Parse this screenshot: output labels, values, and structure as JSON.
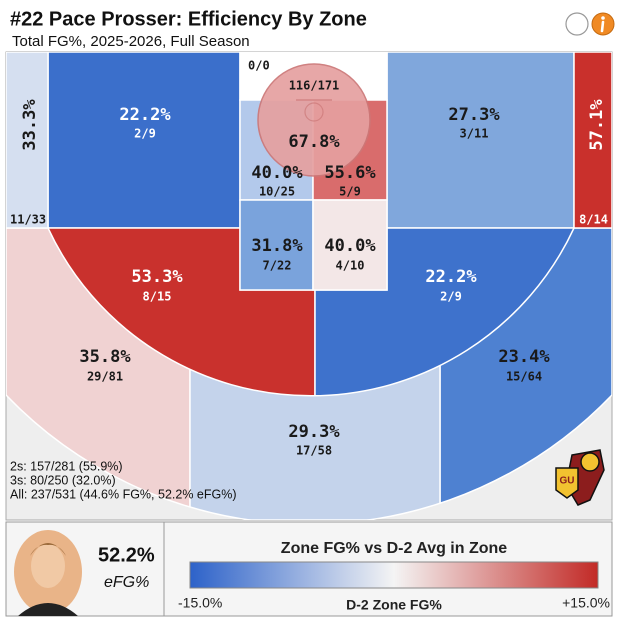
{
  "header": {
    "title": "#22 Pace Prosser: Efficiency By Zone",
    "subtitle": "Total FG%, 2025-2026, Full Season"
  },
  "zones": [
    {
      "pct": "33.3%",
      "made": "11/33",
      "color": "#d5dff0",
      "label_color": "#1a1a1a"
    },
    {
      "pct": "57.1%",
      "made": "8/14",
      "color": "#c9302c",
      "label_color": "#ffffff"
    },
    {
      "pct": "22.2%",
      "made": "2/9",
      "color": "#3b6fcb",
      "label_color": "#ffffff"
    },
    {
      "pct": "27.3%",
      "made": "3/11",
      "color": "#80a7dc",
      "label_color": "#1a1a1a"
    },
    {
      "pct": "53.3%",
      "made": "8/15",
      "color": "#c9312d",
      "label_color": "#ffffff"
    },
    {
      "pct": "22.2%",
      "made": "2/9",
      "color": "#3e72cc",
      "label_color": "#ffffff"
    },
    {
      "pct": "35.8%",
      "made": "29/81",
      "color": "#f0d2d2",
      "label_color": "#1a1a1a"
    },
    {
      "pct": "23.4%",
      "made": "15/64",
      "color": "#4e81d1",
      "label_color": "#1a1a1a"
    },
    {
      "pct": "29.3%",
      "made": "17/58",
      "color": "#c4d3eb",
      "label_color": "#1a1a1a"
    },
    {
      "made": "0/0",
      "color": "#ffffff",
      "label_color": "#1a1a1a"
    },
    {
      "pct": "67.8%",
      "made": "116/171",
      "color": "#e5a0a0",
      "label_color": "#1a1a1a"
    },
    {
      "pct": "40.0%",
      "made": "10/25",
      "color": "#b3c9eb",
      "label_color": "#1a1a1a"
    },
    {
      "pct": "55.6%",
      "made": "5/9",
      "color": "#d96c6c",
      "label_color": "#1a1a1a"
    },
    {
      "pct": "31.8%",
      "made": "7/22",
      "color": "#7aa3dc",
      "label_color": "#1a1a1a"
    },
    {
      "pct": "40.0%",
      "made": "4/10",
      "color": "#f3e7e7",
      "label_color": "#1a1a1a"
    }
  ],
  "summary": [
    "2s: 157/281 (55.9%)",
    "3s: 80/250 (32.0%)",
    "All: 237/531 (44.6% FG%, 52.2% eFG%)"
  ],
  "logo": {
    "text": "GU"
  },
  "player": {
    "efg": "52.2%",
    "efg_label": "eFG%"
  },
  "legend": {
    "title": "Zone FG% vs D-2 Avg in Zone",
    "min_label": "-15.0%",
    "axis_label": "D-2 Zone FG%",
    "max_label": "+15.0%",
    "low_color": "#2d62c9",
    "mid_color": "#f4f4f4",
    "high_color": "#c22a26"
  }
}
